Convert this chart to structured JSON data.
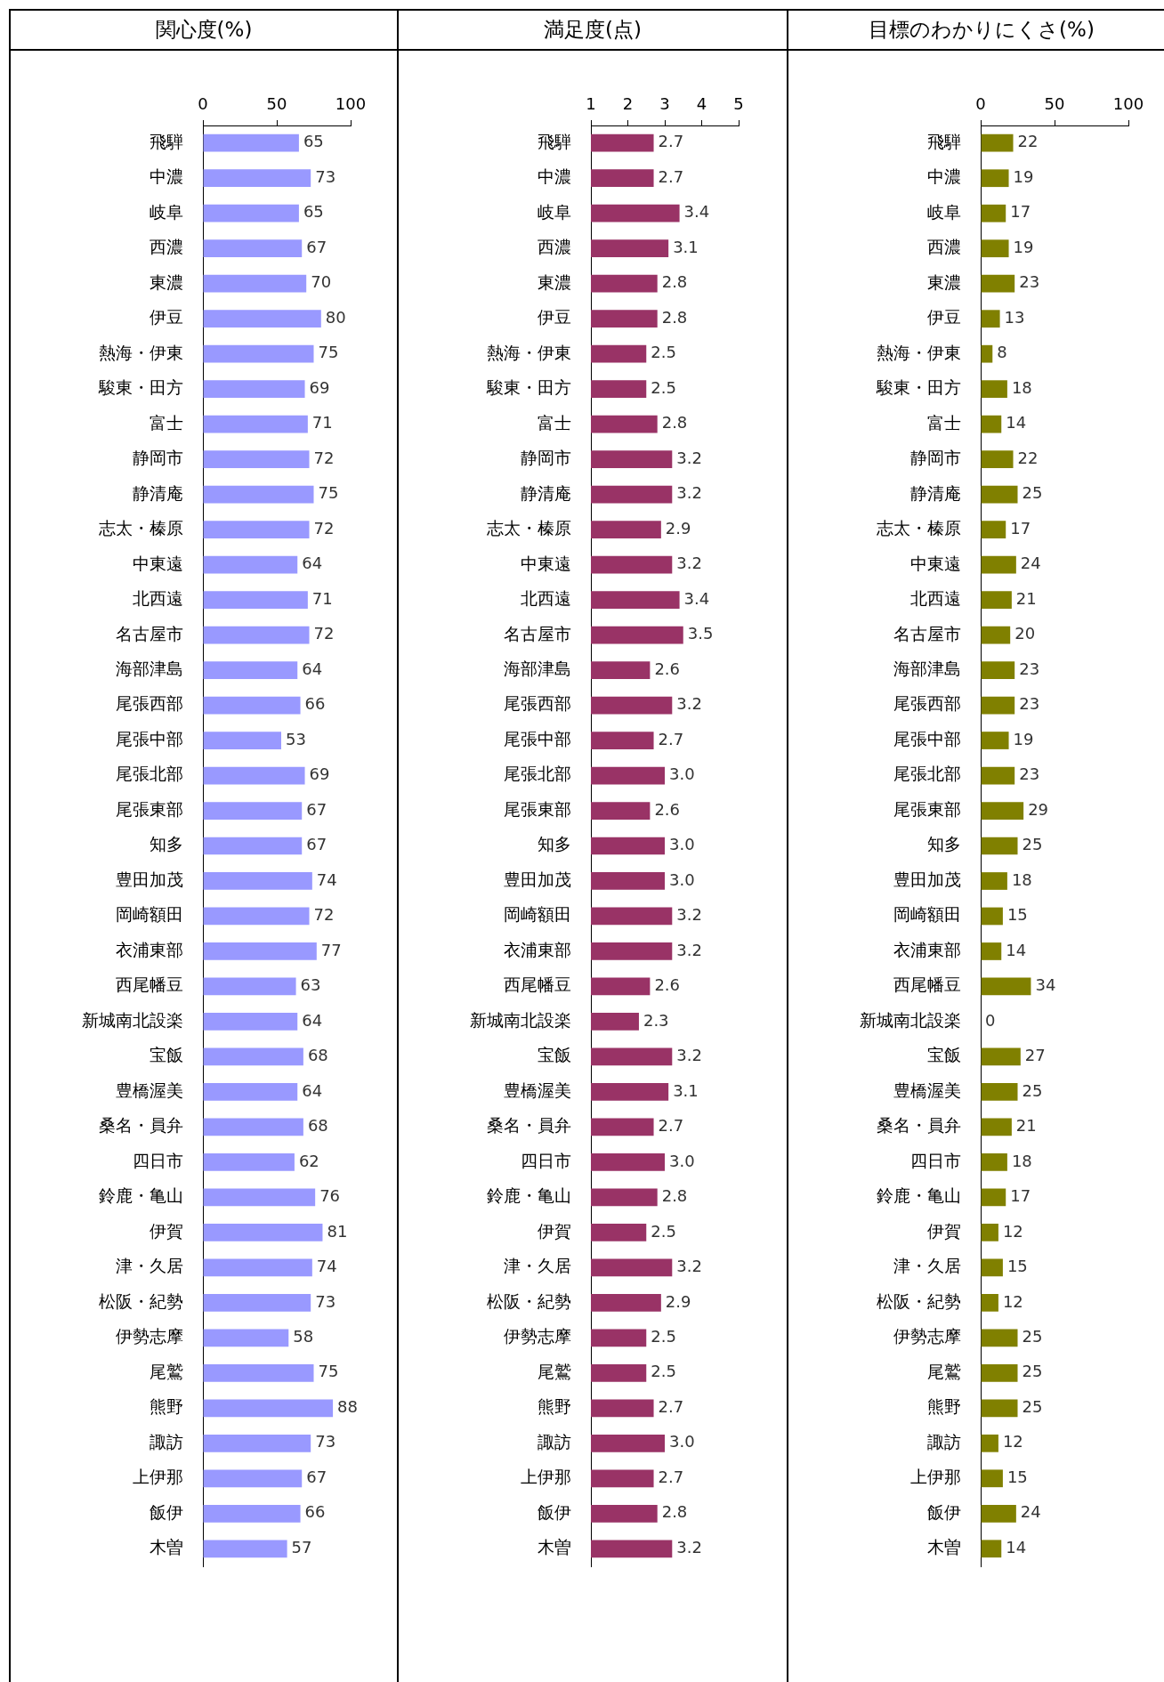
{
  "chart_data": [
    {
      "type": "bar",
      "orientation": "horizontal",
      "title": "関心度(%)",
      "color": "#9999ff",
      "xlim": [
        0,
        100
      ],
      "xticks": [
        0,
        50,
        100
      ],
      "data_labels": true,
      "categories": [
        "飛騨",
        "中濃",
        "岐阜",
        "西濃",
        "東濃",
        "伊豆",
        "熱海・伊東",
        "駿東・田方",
        "富士",
        "静岡市",
        "静清庵",
        "志太・榛原",
        "中東遠",
        "北西遠",
        "名古屋市",
        "海部津島",
        "尾張西部",
        "尾張中部",
        "尾張北部",
        "尾張東部",
        "知多",
        "豊田加茂",
        "岡崎額田",
        "衣浦東部",
        "西尾幡豆",
        "新城南北設楽",
        "宝飯",
        "豊橋渥美",
        "桑名・員弁",
        "四日市",
        "鈴鹿・亀山",
        "伊賀",
        "津・久居",
        "松阪・紀勢",
        "伊勢志摩",
        "尾鷲",
        "熊野",
        "諏訪",
        "上伊那",
        "飯伊",
        "木曽"
      ],
      "values": [
        65,
        73,
        65,
        67,
        70,
        80,
        75,
        69,
        71,
        72,
        75,
        72,
        64,
        71,
        72,
        64,
        66,
        53,
        69,
        67,
        67,
        74,
        72,
        77,
        63,
        64,
        68,
        64,
        68,
        62,
        76,
        81,
        74,
        73,
        58,
        75,
        88,
        73,
        67,
        66,
        57
      ]
    },
    {
      "type": "bar",
      "orientation": "horizontal",
      "title": "満足度(点)",
      "color": "#993366",
      "xlim": [
        1,
        5
      ],
      "xticks": [
        1,
        2,
        3,
        4,
        5
      ],
      "categories": [
        "飛騨",
        "中濃",
        "岐阜",
        "西濃",
        "東濃",
        "伊豆",
        "熱海・伊東",
        "駿東・田方",
        "富士",
        "静岡市",
        "静清庵",
        "志太・榛原",
        "中東遠",
        "北西遠",
        "名古屋市",
        "海部津島",
        "尾張西部",
        "尾張中部",
        "尾張北部",
        "尾張東部",
        "知多",
        "豊田加茂",
        "岡崎額田",
        "衣浦東部",
        "西尾幡豆",
        "新城南北設楽",
        "宝飯",
        "豊橋渥美",
        "桑名・員弁",
        "四日市",
        "鈴鹿・亀山",
        "伊賀",
        "津・久居",
        "松阪・紀勢",
        "伊勢志摩",
        "尾鷲",
        "熊野",
        "諏訪",
        "上伊那",
        "飯伊",
        "木曽"
      ],
      "values": [
        2.7,
        2.7,
        3.4,
        3.1,
        2.8,
        2.8,
        2.5,
        2.5,
        2.8,
        3.2,
        3.2,
        2.9,
        3.2,
        3.4,
        3.5,
        2.6,
        3.2,
        2.7,
        3.0,
        2.6,
        3.0,
        3.0,
        3.2,
        3.2,
        2.6,
        2.3,
        3.2,
        3.1,
        2.7,
        3.0,
        2.8,
        2.5,
        3.2,
        2.9,
        2.5,
        2.5,
        2.7,
        3.0,
        2.7,
        2.8,
        3.2
      ],
      "value_labels": [
        "2.7",
        "2.7",
        "3.4",
        "3.1",
        "2.8",
        "2.8",
        "2.5",
        "2.5",
        "2.8",
        "3.2",
        "3.2",
        "2.9",
        "3.2",
        "3.4",
        "3.5",
        "2.6",
        "3.2",
        "2.7",
        "3.0",
        "2.6",
        "3.0",
        "3.0",
        "3.2",
        "3.2",
        "2.6",
        "2.3",
        "3.2",
        "3.1",
        "2.7",
        "3.0",
        "2.8",
        "2.5",
        "3.2",
        "2.9",
        "2.5",
        "2.5",
        "2.7",
        "3.0",
        "2.7",
        "2.8",
        "3.2"
      ]
    },
    {
      "type": "bar",
      "orientation": "horizontal",
      "title": "目標のわかりにくさ(%)",
      "color": "#808000",
      "xlim": [
        0,
        100
      ],
      "xticks": [
        0,
        50,
        100
      ],
      "data_labels": true,
      "categories": [
        "飛騨",
        "中濃",
        "岐阜",
        "西濃",
        "東濃",
        "伊豆",
        "熱海・伊東",
        "駿東・田方",
        "富士",
        "静岡市",
        "静清庵",
        "志太・榛原",
        "中東遠",
        "北西遠",
        "名古屋市",
        "海部津島",
        "尾張西部",
        "尾張中部",
        "尾張北部",
        "尾張東部",
        "知多",
        "豊田加茂",
        "岡崎額田",
        "衣浦東部",
        "西尾幡豆",
        "新城南北設楽",
        "宝飯",
        "豊橋渥美",
        "桑名・員弁",
        "四日市",
        "鈴鹿・亀山",
        "伊賀",
        "津・久居",
        "松阪・紀勢",
        "伊勢志摩",
        "尾鷲",
        "熊野",
        "諏訪",
        "上伊那",
        "飯伊",
        "木曽"
      ],
      "values": [
        22,
        19,
        17,
        19,
        23,
        13,
        8,
        18,
        14,
        22,
        25,
        17,
        24,
        21,
        20,
        23,
        23,
        19,
        23,
        29,
        25,
        18,
        15,
        14,
        34,
        0,
        27,
        25,
        21,
        18,
        17,
        12,
        15,
        12,
        25,
        25,
        25,
        12,
        15,
        24,
        14
      ]
    }
  ]
}
